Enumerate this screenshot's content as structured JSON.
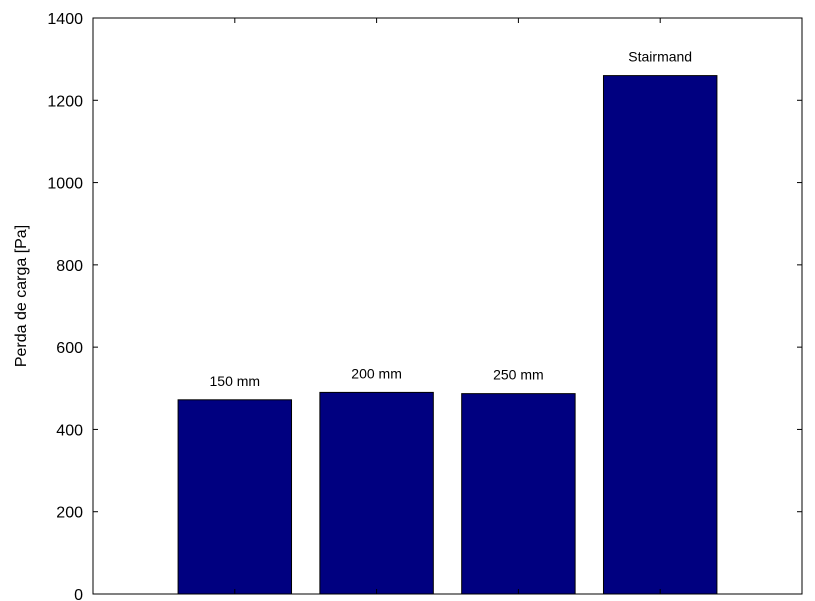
{
  "chart_data": {
    "type": "bar",
    "categories": [
      "150 mm",
      "200 mm",
      "250 mm",
      "Stairmand"
    ],
    "values": [
      472,
      490,
      487,
      1260
    ],
    "title": "",
    "xlabel": "",
    "ylabel": "Perda de carga [Pa]",
    "ylim": [
      0,
      1400
    ],
    "yticks": [
      0,
      200,
      400,
      600,
      800,
      1000,
      1200,
      1400
    ],
    "grid": false,
    "bar_color": "#000080",
    "bar_labels": [
      "150 mm",
      "200 mm",
      "250 mm",
      "Stairmand"
    ]
  }
}
